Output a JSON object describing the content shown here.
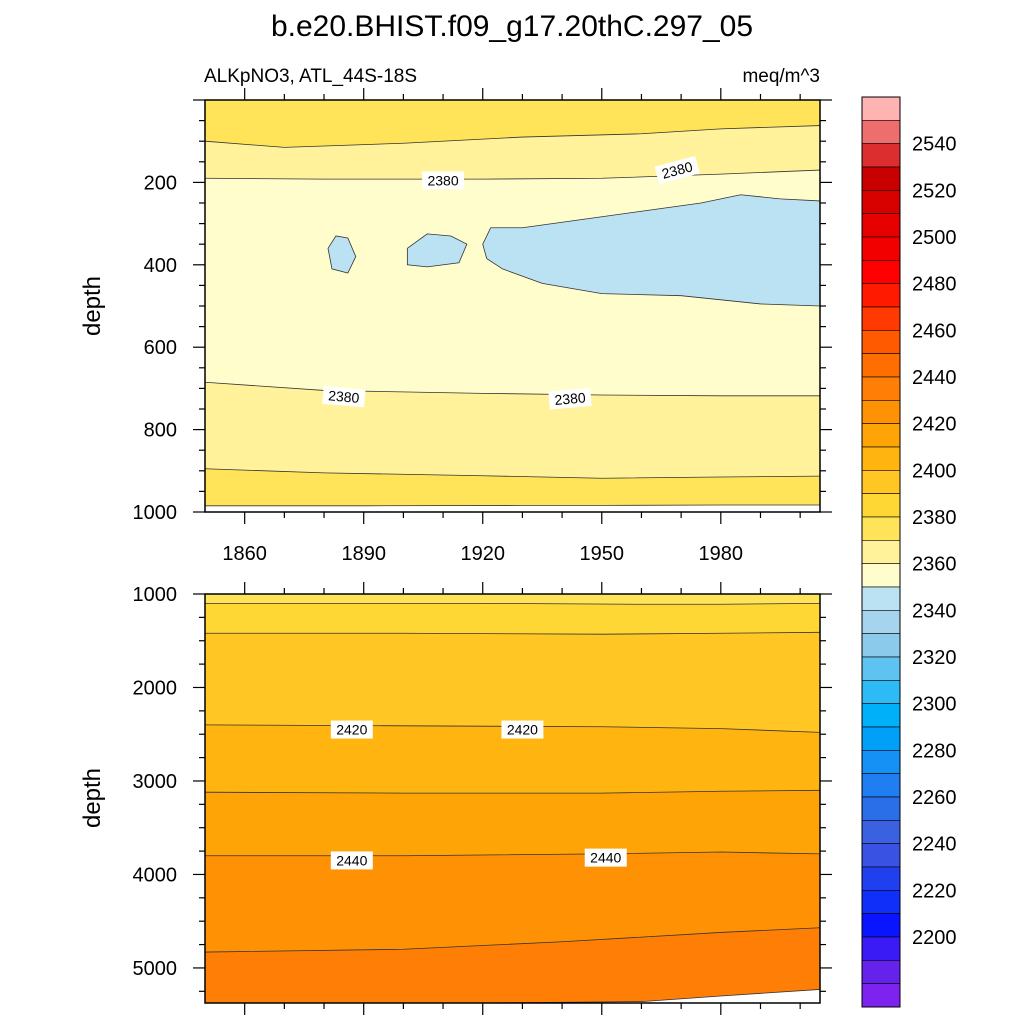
{
  "title": "b.e20.BHIST.f09_g17.20thC.297_05",
  "colors": {
    "lightblue": "#bbe2f2",
    "palest": "#fffdcc",
    "pale": "#fff29a",
    "yellow": "#ffe45a",
    "gold": "#ffd735",
    "amber1": "#ffc624",
    "amber2": "#ffb410",
    "orange1": "#ffa406",
    "orange2": "#ff9204",
    "orange3": "#ff7f06"
  },
  "colorbar": {
    "labels": [
      "2540",
      "2520",
      "2500",
      "2480",
      "2460",
      "2440",
      "2420",
      "2400",
      "2380",
      "2360",
      "2340",
      "2320",
      "2300",
      "2280",
      "2260",
      "2240",
      "2220",
      "2200"
    ],
    "colors_top_to_bottom": [
      "#ffb3b3",
      "#ee6e6e",
      "#dc2e2e",
      "#c80000",
      "#d90000",
      "#e60000",
      "#f20000",
      "#ff0000",
      "#ff1a00",
      "#ff3a00",
      "#ff5a00",
      "#ff6e00",
      "#ff7f06",
      "#ff9204",
      "#ffa406",
      "#ffb410",
      "#ffc624",
      "#ffd735",
      "#ffe45a",
      "#fff29a",
      "#fffdcc",
      "#bbe2f2",
      "#a5d4ec",
      "#8bcaea",
      "#5ec3f0",
      "#2ebbf5",
      "#00b1fa",
      "#00a0f8",
      "#1590f5",
      "#1f7ef0",
      "#2a6ee8",
      "#3a62e0",
      "#3a52e3",
      "#2040f0",
      "#1030fa",
      "#0a14ff",
      "#3a1af5",
      "#6422ea",
      "#7d22ef"
    ]
  },
  "chart_data": [
    {
      "type": "heatmap",
      "subtitle_left": "ALKpNO3, ATL_44S-18S",
      "subtitle_right": "meq/m^3",
      "ylabel": "depth",
      "xlim": [
        1850,
        2005
      ],
      "ylim": [
        1000,
        0
      ],
      "x_ticks": [
        1860,
        1890,
        1920,
        1950,
        1980
      ],
      "y_ticks": [
        200,
        400,
        600,
        800,
        1000
      ],
      "bands": [
        {
          "value_range": "2390-2400",
          "color": "#ffe45a",
          "boundary": [
            [
              1850,
              985
            ],
            [
              1890,
              985
            ],
            [
              1930,
              984
            ],
            [
              1950,
              984
            ],
            [
              1980,
              983
            ],
            [
              2005,
              983
            ]
          ]
        },
        {
          "value_range": "2380-2390",
          "color": "#fff29a",
          "boundary": [
            [
              1850,
              895
            ],
            [
              1880,
              905
            ],
            [
              1920,
              912
            ],
            [
              1950,
              918
            ],
            [
              1980,
              915
            ],
            [
              2005,
              913
            ]
          ]
        },
        {
          "value_range": "2370-2380",
          "color": "#fffdcc",
          "boundary": [
            [
              1850,
              685
            ],
            [
              1880,
              705
            ],
            [
              1920,
              712
            ],
            [
              1950,
              716
            ],
            [
              1980,
              718
            ],
            [
              2005,
              718
            ]
          ]
        },
        {
          "value_range": "2380-2390",
          "color": "#fff29a",
          "boundary": [
            [
              1850,
              190
            ],
            [
              1880,
              192
            ],
            [
              1920,
              192
            ],
            [
              1950,
              190
            ],
            [
              1980,
              180
            ],
            [
              2005,
              170
            ]
          ]
        },
        {
          "value_range": "2390-2400",
          "color": "#ffe45a",
          "boundary": [
            [
              1850,
              100
            ],
            [
              1870,
              115
            ],
            [
              1900,
              105
            ],
            [
              1930,
              90
            ],
            [
              1960,
              82
            ],
            [
              1980,
              70
            ],
            [
              2005,
              62
            ]
          ]
        }
      ],
      "blobs": [
        {
          "value_range": "2360-2370",
          "color": "#bbe2f2",
          "points": [
            [
              1881,
              360
            ],
            [
              1883,
              330
            ],
            [
              1886,
              335
            ],
            [
              1888,
              380
            ],
            [
              1886,
              420
            ],
            [
              1882,
              410
            ]
          ]
        },
        {
          "value_range": "2360-2370",
          "color": "#bbe2f2",
          "points": [
            [
              1901,
              360
            ],
            [
              1906,
              325
            ],
            [
              1912,
              330
            ],
            [
              1916,
              350
            ],
            [
              1914,
              395
            ],
            [
              1906,
              405
            ],
            [
              1901,
              400
            ]
          ]
        },
        {
          "value_range": "2360-2370",
          "color": "#bbe2f2",
          "points": [
            [
              1920,
              350
            ],
            [
              1922,
              310
            ],
            [
              1930,
              310
            ],
            [
              1945,
              290
            ],
            [
              1960,
              270
            ],
            [
              1975,
              250
            ],
            [
              1985,
              230
            ],
            [
              1995,
              240
            ],
            [
              2005,
              245
            ],
            [
              2005,
              500
            ],
            [
              1990,
              495
            ],
            [
              1970,
              475
            ],
            [
              1950,
              470
            ],
            [
              1935,
              445
            ],
            [
              1925,
              410
            ],
            [
              1921,
              385
            ]
          ]
        }
      ],
      "contour_labels": [
        {
          "text": "2380",
          "x": 1910,
          "y": 195,
          "angle": 0
        },
        {
          "text": "2380",
          "x": 1969,
          "y": 170,
          "angle": -15
        },
        {
          "text": "2380",
          "x": 1885,
          "y": 720,
          "angle": 5
        },
        {
          "text": "2380",
          "x": 1942,
          "y": 725,
          "angle": -5
        }
      ]
    },
    {
      "type": "heatmap",
      "ylabel": "depth",
      "xlim": [
        1850,
        2005
      ],
      "ylim": [
        5375,
        1000
      ],
      "y_ticks": [
        1000,
        2000,
        3000,
        4000,
        5000
      ],
      "bands": [
        {
          "value_range": "2440-2450",
          "color": "#ff7f06",
          "boundary": [
            [
              1850,
              5375
            ],
            [
              1920,
              5375
            ],
            [
              1960,
              5360
            ],
            [
              1980,
              5300
            ],
            [
              2005,
              5230
            ]
          ]
        },
        {
          "value_range": "2430-2440",
          "color": "#ff9204",
          "boundary": [
            [
              1850,
              4830
            ],
            [
              1900,
              4800
            ],
            [
              1940,
              4720
            ],
            [
              1980,
              4620
            ],
            [
              2005,
              4570
            ]
          ]
        },
        {
          "value_range": "2420-2430",
          "color": "#ffa406",
          "boundary": [
            [
              1850,
              3800
            ],
            [
              1900,
              3800
            ],
            [
              1950,
              3780
            ],
            [
              1980,
              3760
            ],
            [
              2005,
              3780
            ]
          ]
        },
        {
          "value_range": "2410-2420",
          "color": "#ffb410",
          "boundary": [
            [
              1850,
              3120
            ],
            [
              1900,
              3130
            ],
            [
              1950,
              3130
            ],
            [
              1980,
              3110
            ],
            [
              2005,
              3100
            ]
          ]
        },
        {
          "value_range": "2400-2410",
          "color": "#ffc624",
          "boundary": [
            [
              1850,
              2400
            ],
            [
              1900,
              2410
            ],
            [
              1950,
              2420
            ],
            [
              1980,
              2440
            ],
            [
              2005,
              2480
            ]
          ]
        },
        {
          "value_range": "2395-2400",
          "color": "#ffd735",
          "boundary": [
            [
              1850,
              1420
            ],
            [
              1900,
              1420
            ],
            [
              1950,
              1430
            ],
            [
              1980,
              1420
            ],
            [
              2005,
              1410
            ]
          ]
        },
        {
          "value_range": "2390-2395",
          "color": "#ffe45a",
          "boundary": [
            [
              1850,
              1100
            ],
            [
              1920,
              1100
            ],
            [
              1960,
              1110
            ],
            [
              1980,
              1110
            ],
            [
              2005,
              1100
            ]
          ]
        }
      ],
      "contour_labels": [
        {
          "text": "2420",
          "x": 1887,
          "y": 2450,
          "angle": 0
        },
        {
          "text": "2420",
          "x": 1930,
          "y": 2450,
          "angle": 0
        },
        {
          "text": "2440",
          "x": 1887,
          "y": 3850,
          "angle": 0
        },
        {
          "text": "2440",
          "x": 1951,
          "y": 3820,
          "angle": 0
        }
      ]
    }
  ]
}
